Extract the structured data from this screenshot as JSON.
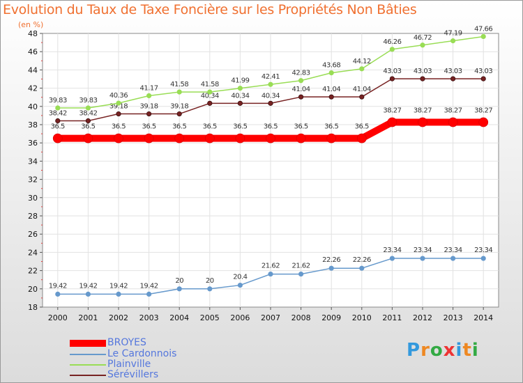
{
  "header": {
    "title": "Evolution du Taux de Taxe Foncière sur les Propriétés Non Bâties",
    "unit_note": "(en %)"
  },
  "chart_data": {
    "type": "line",
    "title": "Evolution du Taux de Taxe Foncière sur les Propriétés Non Bâties",
    "ylabel": "(en %)",
    "xlabel": "",
    "ylim": [
      18,
      48
    ],
    "y_ticks": [
      18,
      20,
      22,
      24,
      26,
      28,
      30,
      32,
      34,
      36,
      38,
      40,
      42,
      44,
      46,
      48
    ],
    "grid": true,
    "legend_position": "bottom-left",
    "categories": [
      "2000",
      "2001",
      "2002",
      "2003",
      "2004",
      "2005",
      "2006",
      "2007",
      "2008",
      "2009",
      "2010",
      "2011",
      "2012",
      "2013",
      "2014"
    ],
    "series": [
      {
        "name": "BROYES",
        "color": "#ff0000",
        "values": [
          36.5,
          36.5,
          36.5,
          36.5,
          36.5,
          36.5,
          36.5,
          36.5,
          36.5,
          36.5,
          36.5,
          38.27,
          38.27,
          38.27,
          38.27
        ]
      },
      {
        "name": "Le Cardonnois",
        "color": "#6699cc",
        "values": [
          19.42,
          19.42,
          19.42,
          19.42,
          20,
          20,
          20.4,
          21.62,
          21.62,
          22.26,
          22.26,
          23.34,
          23.34,
          23.34,
          23.34
        ]
      },
      {
        "name": "Plainville",
        "color": "#99dd55",
        "values": [
          39.83,
          39.83,
          40.36,
          41.17,
          41.58,
          41.58,
          41.99,
          42.41,
          42.83,
          43.68,
          44.12,
          46.26,
          46.72,
          47.19,
          47.66
        ]
      },
      {
        "name": "Sérévillers",
        "color": "#772222",
        "values": [
          38.42,
          38.42,
          39.18,
          39.18,
          39.18,
          40.34,
          40.34,
          40.34,
          41.04,
          41.04,
          41.04,
          43.03,
          43.03,
          43.03,
          43.03
        ]
      }
    ]
  },
  "logo": {
    "text": "Proxiti"
  }
}
